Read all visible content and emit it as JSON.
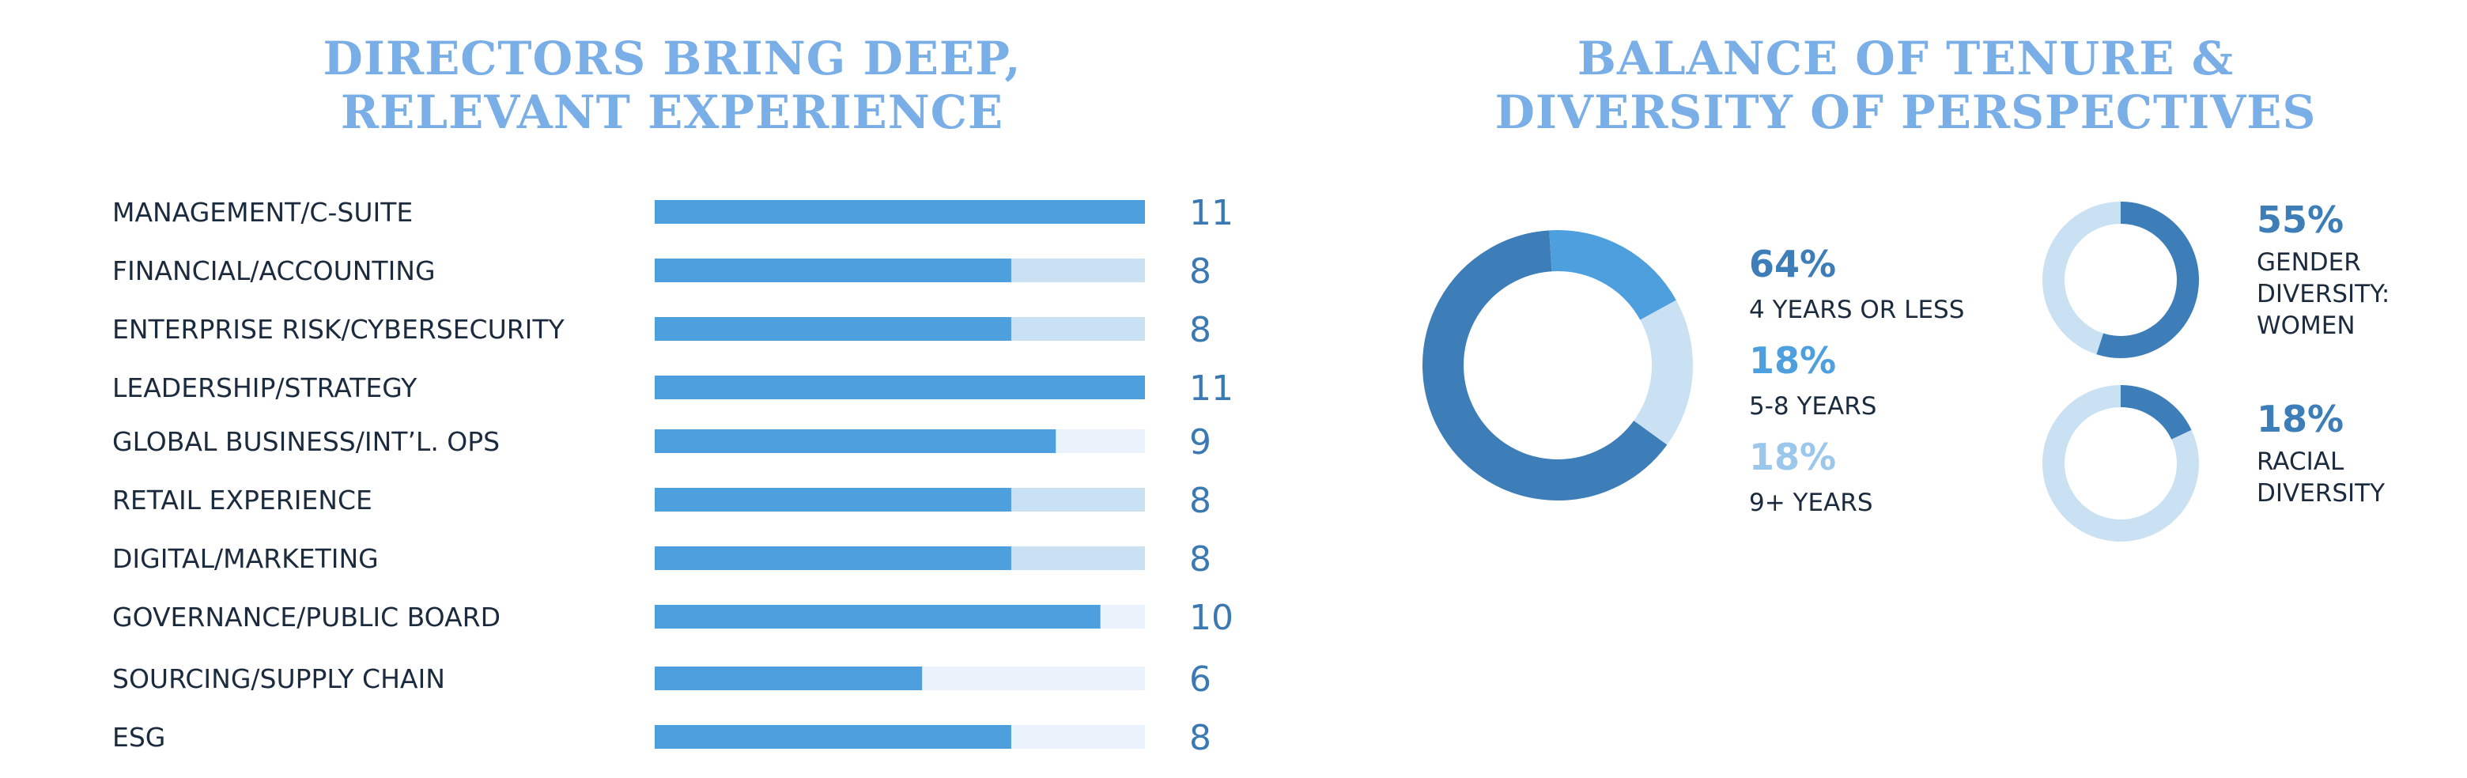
{
  "colors": {
    "title": "#79aee6",
    "bar_fill": "#4e9fde",
    "bar_track_mid": "#cae1f4",
    "bar_track_light": "#eaf3fb",
    "value_text": "#3a79b3",
    "label_text": "#1b2b3d",
    "donut_dark": "#3d7db8",
    "donut_mid": "#4e9fde",
    "donut_light": "#cae1f4"
  },
  "chart_data": [
    {
      "type": "bar",
      "orientation": "horizontal",
      "title": "DIRECTORS BRING DEEP,\nRELEVANT EXPERIENCE",
      "xlim": [
        0,
        11
      ],
      "categories": [
        "MANAGEMENT/C-SUITE",
        "FINANCIAL/ACCOUNTING",
        "ENTERPRISE RISK/CYBERSECURITY",
        "LEADERSHIP/STRATEGY",
        "GLOBAL BUSINESS/INT’L. OPS",
        "RETAIL EXPERIENCE",
        "DIGITAL/MARKETING",
        "GOVERNANCE/PUBLIC BOARD",
        "SOURCING/SUPPLY CHAIN",
        "ESG"
      ],
      "values": [
        11,
        8,
        8,
        11,
        9,
        8,
        8,
        10,
        6,
        8
      ],
      "value_labels": [
        "11",
        "8",
        "8",
        "11",
        "9",
        "8",
        "8",
        "10",
        "6",
        "8"
      ],
      "grid": false
    },
    {
      "type": "pie",
      "variant": "donut",
      "title": "BALANCE OF TENURE &\nDIVERSITY OF PERSPECTIVES",
      "labels": [
        "4 YEARS OR LESS",
        "5-8 YEARS",
        "9+ YEARS"
      ],
      "values": [
        64,
        18,
        18
      ],
      "value_labels": [
        "64%",
        "18%",
        "18%"
      ],
      "colors": [
        "#3d7db8",
        "#4e9fde",
        "#cae1f4"
      ]
    },
    {
      "type": "pie",
      "variant": "donut",
      "label": "GENDER\nDIVERSITY:\nWOMEN",
      "values": [
        55,
        45
      ],
      "value_label": "55%",
      "colors": [
        "#3d7db8",
        "#cae1f4"
      ]
    },
    {
      "type": "pie",
      "variant": "donut",
      "label": "RACIAL\nDIVERSITY",
      "values": [
        18,
        82
      ],
      "value_label": "18%",
      "colors": [
        "#3d7db8",
        "#cae1f4"
      ]
    }
  ]
}
